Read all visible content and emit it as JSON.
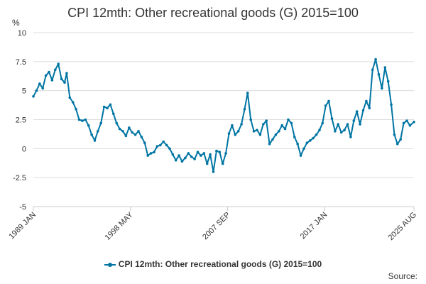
{
  "chart_data": {
    "type": "line",
    "title": "CPI 12mth: Other recreational goods (G) 2015=100",
    "ylabel": "%",
    "xlabel": "",
    "ylim": [
      -5,
      10
    ],
    "yticks": [
      {
        "value": 10,
        "label": "10"
      },
      {
        "value": 7.5,
        "label": "7.5"
      },
      {
        "value": 5,
        "label": "5"
      },
      {
        "value": 2.5,
        "label": "2.5"
      },
      {
        "value": 0,
        "label": "0"
      },
      {
        "value": -2.5,
        "label": "-2.5"
      },
      {
        "value": -5,
        "label": "-5"
      }
    ],
    "xlim": [
      1989.0,
      2025.58
    ],
    "xticks": [
      {
        "value": 1989.0,
        "label": "1989 JAN"
      },
      {
        "value": 1998.33,
        "label": "1998 MAY"
      },
      {
        "value": 2007.67,
        "label": "2007 SEP"
      },
      {
        "value": 2017.0,
        "label": "2017 JAN"
      },
      {
        "value": 2025.58,
        "label": "2025 AUG"
      }
    ],
    "grid": true,
    "legend_position": "bottom",
    "series": [
      {
        "name": "CPI 12mth: Other recreational goods (G) 2015=100",
        "color": "#0075a3",
        "x": [
          1989.0,
          1989.3,
          1989.6,
          1989.9,
          1990.2,
          1990.5,
          1990.8,
          1991.1,
          1991.4,
          1991.7,
          1992.0,
          1992.2,
          1992.5,
          1992.8,
          1993.1,
          1993.4,
          1993.7,
          1994.0,
          1994.3,
          1994.6,
          1994.9,
          1995.2,
          1995.5,
          1995.8,
          1996.1,
          1996.4,
          1996.7,
          1997.0,
          1997.3,
          1997.6,
          1997.9,
          1998.2,
          1998.5,
          1998.8,
          1999.1,
          1999.4,
          1999.7,
          2000.0,
          2000.3,
          2000.6,
          2000.9,
          2001.2,
          2001.5,
          2001.8,
          2002.1,
          2002.4,
          2002.7,
          2003.0,
          2003.3,
          2003.6,
          2003.9,
          2004.2,
          2004.5,
          2004.8,
          2005.1,
          2005.4,
          2005.7,
          2006.0,
          2006.3,
          2006.6,
          2006.9,
          2007.2,
          2007.5,
          2007.8,
          2008.1,
          2008.4,
          2008.7,
          2009.0,
          2009.3,
          2009.6,
          2009.9,
          2010.2,
          2010.5,
          2010.8,
          2011.1,
          2011.4,
          2011.7,
          2012.0,
          2012.3,
          2012.6,
          2012.9,
          2013.2,
          2013.5,
          2013.8,
          2014.1,
          2014.4,
          2014.7,
          2015.0,
          2015.3,
          2015.6,
          2015.9,
          2016.2,
          2016.5,
          2016.8,
          2017.1,
          2017.4,
          2017.7,
          2018.0,
          2018.3,
          2018.6,
          2018.9,
          2019.2,
          2019.5,
          2019.8,
          2020.1,
          2020.4,
          2020.7,
          2021.0,
          2021.3,
          2021.6,
          2021.9,
          2022.2,
          2022.5,
          2022.8,
          2023.1,
          2023.4,
          2023.7,
          2024.0,
          2024.3,
          2024.6,
          2024.9,
          2025.2,
          2025.58
        ],
        "values": [
          4.5,
          5.0,
          5.6,
          5.2,
          6.3,
          6.6,
          5.9,
          6.8,
          7.3,
          6.0,
          5.7,
          6.5,
          4.4,
          4.0,
          3.4,
          2.5,
          2.4,
          2.5,
          2.0,
          1.2,
          0.7,
          1.5,
          2.2,
          3.6,
          3.5,
          3.8,
          3.0,
          2.2,
          1.7,
          1.5,
          1.1,
          1.8,
          1.4,
          1.2,
          1.5,
          1.0,
          0.5,
          -0.6,
          -0.4,
          -0.3,
          0.2,
          0.3,
          0.6,
          0.3,
          0.0,
          -0.5,
          -1.0,
          -0.6,
          -1.1,
          -0.8,
          -0.4,
          -0.7,
          -0.9,
          -0.3,
          -0.6,
          -0.4,
          -1.3,
          -0.5,
          -2.0,
          -0.2,
          -0.3,
          -1.3,
          -0.4,
          1.3,
          2.0,
          1.2,
          1.5,
          2.1,
          3.4,
          4.8,
          2.5,
          1.5,
          1.6,
          1.2,
          2.1,
          2.4,
          0.4,
          0.8,
          1.2,
          1.5,
          2.0,
          1.7,
          2.5,
          2.2,
          1.0,
          0.4,
          -0.6,
          0.0,
          0.5,
          0.7,
          0.9,
          1.2,
          1.6,
          2.2,
          3.7,
          4.1,
          2.6,
          1.5,
          2.1,
          1.4,
          1.6,
          2.1,
          1.0,
          2.4,
          3.2,
          2.1,
          3.3,
          4.1,
          3.5,
          6.8,
          7.7,
          6.4,
          5.2,
          7.0,
          5.8,
          3.8,
          1.2,
          0.4,
          0.8,
          2.2,
          2.4,
          2.0,
          2.3
        ]
      }
    ]
  },
  "legend": {
    "label": "CPI 12mth: Other recreational goods (G) 2015=100"
  },
  "source": {
    "label": "Source:"
  }
}
